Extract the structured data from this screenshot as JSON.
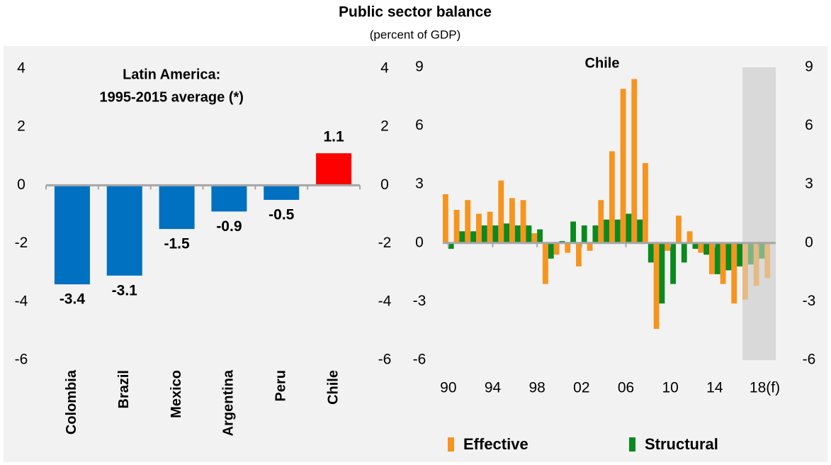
{
  "title": "Public sector balance",
  "subtitle": "(percent of GDP)",
  "chart_data": [
    {
      "type": "bar",
      "title": [
        "Latin America:",
        "1995-2015 average (*)"
      ],
      "categories": [
        "Colombia",
        "Brazil",
        "Mexico",
        "Argentina",
        "Peru",
        "Chile"
      ],
      "values": [
        -3.4,
        -3.1,
        -1.5,
        -0.9,
        -0.5,
        1.1
      ],
      "colors": [
        "#0070C0",
        "#0070C0",
        "#0070C0",
        "#0070C0",
        "#0070C0",
        "#FF0000"
      ],
      "ylim": [
        -6,
        4
      ],
      "yticks": [
        -6,
        -4,
        -2,
        0,
        2,
        4
      ],
      "y_labels_both_sides": true
    },
    {
      "type": "grouped_bar",
      "title": "Chile",
      "x": [
        1990,
        1991,
        1992,
        1993,
        1994,
        1995,
        1996,
        1997,
        1998,
        1999,
        2000,
        2001,
        2002,
        2003,
        2004,
        2005,
        2006,
        2007,
        2008,
        2009,
        2010,
        2011,
        2012,
        2013,
        2014,
        2015,
        2016,
        2017,
        2018,
        2019
      ],
      "xticks": [
        {
          "value": 1990,
          "label": "90"
        },
        {
          "value": 1994,
          "label": "94"
        },
        {
          "value": 1998,
          "label": "98"
        },
        {
          "value": 2002,
          "label": "02"
        },
        {
          "value": 2006,
          "label": "06"
        },
        {
          "value": 2010,
          "label": "10"
        },
        {
          "value": 2014,
          "label": "14"
        },
        {
          "value": 2018,
          "label": "18(f)"
        }
      ],
      "series": [
        {
          "name": "Effective",
          "color": "#F7941D",
          "values": [
            2.5,
            1.7,
            2.2,
            1.5,
            1.6,
            3.2,
            2.3,
            2.2,
            0.5,
            -2.1,
            -0.6,
            -0.5,
            -1.2,
            -0.4,
            2.2,
            4.7,
            7.9,
            8.4,
            4.1,
            -4.4,
            -0.4,
            1.4,
            0.6,
            -0.5,
            -1.6,
            -2.1,
            -3.1,
            -2.9,
            -2.2,
            -1.8
          ]
        },
        {
          "name": "Structural",
          "color": "#0A8A1E",
          "values": [
            -0.3,
            0.6,
            0.6,
            0.9,
            0.9,
            1.0,
            0.9,
            0.9,
            0.7,
            -0.8,
            0.1,
            1.1,
            0.9,
            0.9,
            1.2,
            1.2,
            1.5,
            1.2,
            -1.0,
            -3.1,
            -2.1,
            -1.0,
            -0.3,
            -0.6,
            -1.6,
            -1.4,
            -1.2,
            -1.1,
            -0.8,
            null
          ]
        }
      ],
      "shade": [
        2016.5,
        2019.5
      ],
      "ylim": [
        -6,
        9
      ],
      "yticks": [
        -6,
        -3,
        0,
        3,
        6,
        9
      ],
      "y_labels_both_sides": true
    }
  ]
}
